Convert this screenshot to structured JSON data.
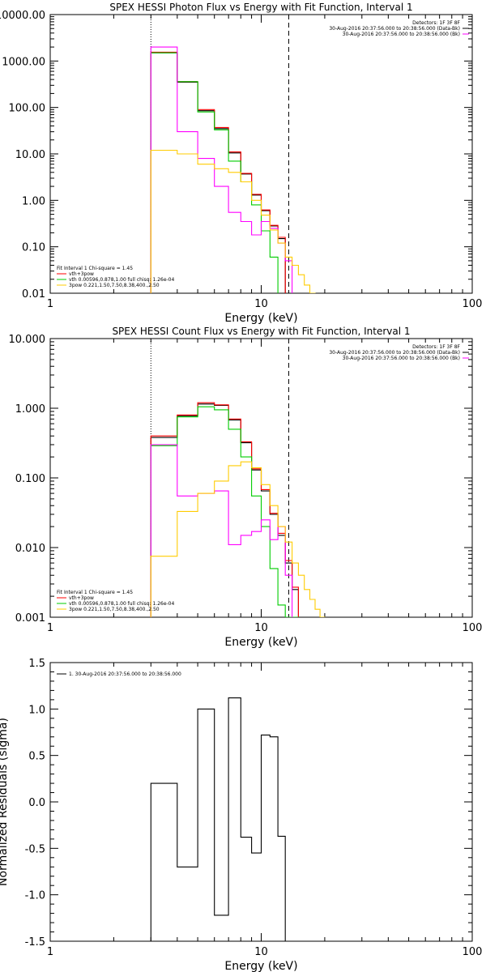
{
  "chart_data": [
    {
      "type": "line",
      "title": "SPEX HESSI Photon Flux vs Energy with Fit Function, Interval 1",
      "xlabel": "Energy (keV)",
      "ylabel": "",
      "xscale": "log",
      "yscale": "log",
      "xlim": [
        1,
        100
      ],
      "ylim": [
        0.01,
        10000
      ],
      "xticks": [
        "1",
        "10",
        "100"
      ],
      "yticks": [
        "0.01",
        "0.10",
        "1.00",
        "10.00",
        "100.00",
        "1000.00",
        "10000.00"
      ],
      "vlines": [
        {
          "x": 3.0,
          "style": "dotted"
        },
        {
          "x": 13.5,
          "style": "dashed"
        }
      ],
      "legend_top": {
        "placement": "top-right",
        "lines": [
          {
            "text": "Detectors: 1F 3F 8F",
            "color": ""
          },
          {
            "text": "30-Aug-2016 20:37:56.000 to 20:38:56.000 (Data-Bk)",
            "color": "#000000"
          },
          {
            "text": "30-Aug-2016 20:37:56.000 to 20:38:56.000 (Bk)",
            "color": "#ff00ff"
          }
        ]
      },
      "legend_fit": {
        "placement": "bottom-left",
        "lines": [
          {
            "text": "Fit Interval 1   Chi-square = 1.45",
            "color": ""
          },
          {
            "text": "vth+3pow",
            "color": "#ff0000"
          },
          {
            "text": "vth 0.00596,0.878,1.00  full chisq: 1.26e-04",
            "color": "#00cc00"
          },
          {
            "text": "3pow 0.221,1.50,7.50,8.38,400.,2.50",
            "color": "#ffcc00"
          }
        ]
      },
      "series": [
        {
          "color": "#000000",
          "edges": [
            3,
            4,
            5,
            6,
            7,
            8,
            9,
            10,
            11,
            12,
            13
          ],
          "values": [
            1500,
            350,
            85,
            35,
            10.5,
            3.7,
            1.3,
            0.6,
            0.28,
            0.15
          ]
        },
        {
          "color": "#ff0000",
          "edges": [
            3,
            4,
            5,
            6,
            7,
            8,
            9,
            10,
            11,
            12,
            13
          ],
          "values": [
            1550,
            360,
            90,
            37,
            11,
            3.8,
            1.35,
            0.62,
            0.29,
            0.16
          ]
        },
        {
          "color": "#00cc00",
          "edges": [
            3,
            4,
            5,
            6,
            7,
            8,
            9,
            10,
            11,
            12,
            13
          ],
          "values": [
            1500,
            360,
            80,
            33,
            7,
            2.5,
            0.8,
            0.22,
            0.06,
            0.009
          ]
        },
        {
          "color": "#ff00ff",
          "edges": [
            3,
            4,
            5,
            6,
            7,
            8,
            9,
            10,
            11,
            12,
            13,
            14
          ],
          "values": [
            2000,
            30,
            8,
            2,
            0.55,
            0.35,
            0.18,
            0.35,
            0.25,
            0.12,
            0.05
          ]
        },
        {
          "color": "#ffcc00",
          "edges": [
            3,
            4,
            5,
            6,
            7,
            8,
            9,
            10,
            11,
            12,
            13,
            14,
            15,
            16,
            17,
            18
          ],
          "values": [
            12,
            10,
            6,
            4.8,
            4,
            2.5,
            1.0,
            0.48,
            0.23,
            0.12,
            0.06,
            0.04,
            0.025,
            0.015,
            0.01
          ]
        }
      ]
    },
    {
      "type": "line",
      "title": "SPEX HESSI Count Flux vs Energy with Fit Function, Interval 1",
      "xlabel": "Energy (keV)",
      "ylabel": "",
      "xscale": "log",
      "yscale": "log",
      "xlim": [
        1,
        100
      ],
      "ylim": [
        0.001,
        10
      ],
      "xticks": [
        "1",
        "10",
        "100"
      ],
      "yticks": [
        "0.001",
        "0.010",
        "0.100",
        "1.000",
        "10.000"
      ],
      "vlines": [
        {
          "x": 3.0,
          "style": "dotted"
        },
        {
          "x": 13.5,
          "style": "dashed"
        }
      ],
      "legend_top": {
        "placement": "top-right",
        "lines": [
          {
            "text": "Detectors: 1F 3F 8F",
            "color": ""
          },
          {
            "text": "30-Aug-2016 20:37:56.000 to 20:38:56.000 (Data-Bk)",
            "color": "#000000"
          },
          {
            "text": "30-Aug-2016 20:37:56.000 to 20:38:56.000 (Bk)",
            "color": "#ff00ff"
          }
        ]
      },
      "legend_fit": {
        "placement": "bottom-left",
        "lines": [
          {
            "text": "Fit Interval 1   Chi-square = 1.45",
            "color": ""
          },
          {
            "text": "vth+3pow",
            "color": "#ff0000"
          },
          {
            "text": "vth 0.00596,0.878,1.00  full chisq: 1.26e-04",
            "color": "#00cc00"
          },
          {
            "text": "3pow 0.221,1.50,7.50,8.38,400.,2.50",
            "color": "#ffcc00"
          }
        ]
      },
      "series": [
        {
          "color": "#000000",
          "edges": [
            3,
            4,
            5,
            6,
            7,
            8,
            9,
            10,
            11,
            12,
            13,
            14,
            15
          ],
          "values": [
            0.38,
            0.78,
            1.15,
            1.1,
            0.68,
            0.32,
            0.13,
            0.065,
            0.03,
            0.015,
            0.006,
            0.0025
          ]
        },
        {
          "color": "#ff0000",
          "edges": [
            3,
            4,
            5,
            6,
            7,
            8,
            9,
            10,
            11,
            12,
            13,
            14,
            15
          ],
          "values": [
            0.4,
            0.8,
            1.2,
            1.12,
            0.7,
            0.33,
            0.135,
            0.068,
            0.031,
            0.016,
            0.0065,
            0.0027
          ]
        },
        {
          "color": "#00cc00",
          "edges": [
            3,
            4,
            5,
            6,
            7,
            8,
            9,
            10,
            11,
            12,
            13,
            14,
            15
          ],
          "values": [
            0.29,
            0.75,
            1.05,
            0.95,
            0.5,
            0.2,
            0.055,
            0.02,
            0.005,
            0.0015,
            0.001,
            0.001
          ]
        },
        {
          "color": "#ff00ff",
          "edges": [
            3,
            4,
            5,
            6,
            7,
            8,
            9,
            10,
            11,
            12,
            13,
            14
          ],
          "values": [
            0.3,
            0.055,
            0.06,
            0.065,
            0.011,
            0.015,
            0.017,
            0.025,
            0.013,
            0.02,
            0.004
          ]
        },
        {
          "color": "#ffcc00",
          "edges": [
            3,
            4,
            5,
            6,
            7,
            8,
            9,
            10,
            11,
            12,
            13,
            14,
            15,
            16,
            17,
            18,
            19,
            20
          ],
          "values": [
            0.0075,
            0.033,
            0.06,
            0.09,
            0.15,
            0.17,
            0.14,
            0.08,
            0.04,
            0.02,
            0.012,
            0.006,
            0.004,
            0.0025,
            0.0018,
            0.0013,
            0.001
          ]
        }
      ]
    },
    {
      "type": "line",
      "title": "",
      "xlabel": "Energy (keV)",
      "ylabel": "Normalized Residuals (sigma)",
      "xscale": "log",
      "yscale": "linear",
      "xlim": [
        1,
        100
      ],
      "ylim": [
        -1.5,
        1.5
      ],
      "xticks": [
        "1",
        "10",
        "100"
      ],
      "yticks": [
        "-1.5",
        "-1.0",
        "-0.5",
        "0.0",
        "0.5",
        "1.0",
        "1.5"
      ],
      "vlines": [],
      "legend_top": {
        "placement": "top-left",
        "lines": [
          {
            "text": "1. 30-Aug-2016 20:37:56.000 to 20:38:56.000",
            "color": "#000000"
          }
        ]
      },
      "legend_fit": {
        "placement": "",
        "lines": []
      },
      "series": [
        {
          "color": "#000000",
          "edges": [
            3,
            4,
            5,
            6,
            7,
            8,
            9,
            10,
            11,
            12,
            13
          ],
          "values": [
            0.2,
            -0.7,
            1.0,
            -1.22,
            1.12,
            -0.38,
            -0.55,
            0.72,
            0.7,
            -0.37
          ],
          "drop_to": -1.5
        }
      ]
    }
  ]
}
